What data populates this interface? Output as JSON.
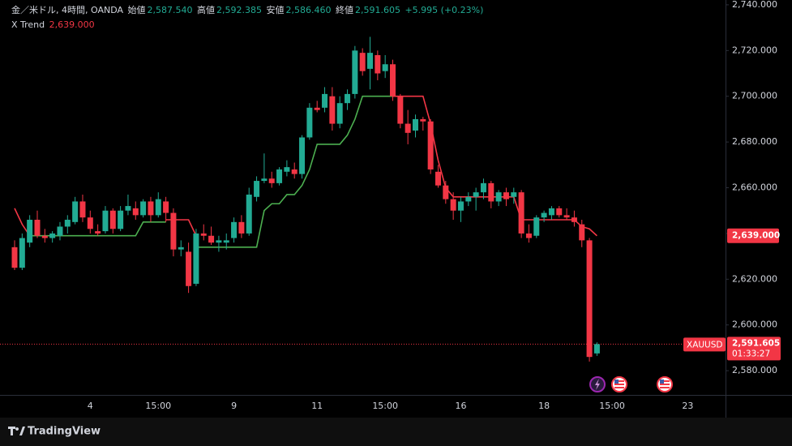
{
  "chart_data": {
    "type": "candlestick",
    "title": "金／米ドル, 4時間, OANDA",
    "header": {
      "open_label": "始値",
      "open": "2,587.540",
      "high_label": "高値",
      "high": "2,592.385",
      "low_label": "安値",
      "low": "2,586.460",
      "close_label": "終値",
      "close": "2,591.605",
      "change": "+5.995 (+0.23%)"
    },
    "indicator": {
      "name": "X Trend",
      "value": 2639,
      "value_label": "2,639.000"
    },
    "symbol": "XAUUSD",
    "last_price": 2591.605,
    "last_price_label": "2,591.605",
    "countdown": "01:33:27",
    "up_color": "#22ab94",
    "down_color": "#f23645",
    "open": [
      2634,
      2625,
      2636,
      2646,
      2639,
      2638,
      2639,
      2643,
      2645,
      2654,
      2647,
      2641,
      2641,
      2650,
      2642,
      2650,
      2651,
      2648,
      2654,
      2648,
      2654,
      2649,
      2633,
      2632,
      2618,
      2640,
      2639,
      2636,
      2636,
      2638,
      2645,
      2640,
      2656,
      2663,
      2664,
      2662,
      2667,
      2668,
      2666,
      2682,
      2695,
      2695,
      2700,
      2688,
      2697,
      2701,
      2719,
      2712,
      2718,
      2711,
      2714,
      2700,
      2688,
      2685,
      2690,
      2689,
      2667,
      2661,
      2655,
      2650,
      2654,
      2656,
      2658,
      2662,
      2654,
      2658,
      2656,
      2658,
      2640,
      2639,
      2647,
      2648,
      2651,
      2648,
      2647,
      2644,
      2637,
      2587.54
    ],
    "high": [
      2637,
      2640,
      2648,
      2650,
      2642,
      2641,
      2645,
      2648,
      2656,
      2657,
      2650,
      2644,
      2652,
      2651,
      2652,
      2657,
      2654,
      2655,
      2656,
      2658,
      2656,
      2651,
      2637,
      2636,
      2642,
      2644,
      2643,
      2639,
      2640,
      2647,
      2648,
      2660,
      2665,
      2675,
      2667,
      2669,
      2672,
      2671,
      2683,
      2697,
      2698,
      2704,
      2704,
      2700,
      2703,
      2722,
      2721,
      2726,
      2720,
      2718,
      2716,
      2701,
      2694,
      2692,
      2691,
      2690,
      2670,
      2663,
      2658,
      2656,
      2658,
      2660,
      2664,
      2663,
      2659,
      2660,
      2660,
      2659,
      2644,
      2648,
      2650,
      2652,
      2652,
      2651,
      2650,
      2646,
      2638,
      2592.385
    ],
    "low": [
      2624,
      2624,
      2634,
      2638,
      2636,
      2636,
      2637,
      2640,
      2644,
      2645,
      2640,
      2639,
      2640,
      2640,
      2641,
      2648,
      2646,
      2647,
      2645,
      2647,
      2645,
      2630,
      2630,
      2614,
      2617,
      2637,
      2635,
      2632,
      2633,
      2636,
      2638,
      2639,
      2654,
      2662,
      2660,
      2661,
      2665,
      2664,
      2664,
      2681,
      2693,
      2693,
      2685,
      2686,
      2694,
      2699,
      2709,
      2703,
      2707,
      2708,
      2698,
      2686,
      2679,
      2682,
      2685,
      2666,
      2660,
      2653,
      2646,
      2645,
      2652,
      2650,
      2655,
      2651,
      2652,
      2652,
      2653,
      2638,
      2636,
      2638,
      2645,
      2646,
      2647,
      2646,
      2643,
      2634,
      2584,
      2586.46
    ],
    "close": [
      2625,
      2638,
      2646,
      2639,
      2638,
      2640,
      2643,
      2646,
      2654,
      2647,
      2642,
      2640,
      2650,
      2642,
      2650,
      2652,
      2648,
      2654,
      2648,
      2655,
      2649,
      2633,
      2634,
      2617,
      2640,
      2639,
      2636,
      2637,
      2637,
      2645,
      2640,
      2657,
      2663,
      2664,
      2662,
      2668,
      2669,
      2666,
      2682,
      2695,
      2694,
      2701,
      2688,
      2697,
      2701,
      2720,
      2711,
      2719,
      2710,
      2714,
      2700,
      2688,
      2684,
      2690,
      2689,
      2668,
      2661,
      2655,
      2650,
      2654,
      2656,
      2658,
      2662,
      2654,
      2658,
      2655,
      2658,
      2640,
      2638,
      2647,
      2649,
      2651,
      2648,
      2647,
      2645,
      2637,
      2586,
      2591.605
    ],
    "series": [
      {
        "name": "X Trend down",
        "color": "#f23645",
        "values": [
          2651,
          2644,
          2639,
          null,
          null,
          null,
          null,
          null,
          null,
          null,
          null,
          null,
          null,
          null,
          null,
          null,
          null,
          null,
          null,
          null,
          2646,
          2646,
          2646,
          2646,
          2639,
          null,
          null,
          null,
          null,
          null,
          null,
          null,
          null,
          null,
          null,
          null,
          null,
          null,
          null,
          null,
          null,
          null,
          null,
          null,
          null,
          null,
          null,
          null,
          null,
          null,
          2700,
          2700,
          2700,
          2700,
          2700,
          2688,
          2672,
          2660,
          2656,
          2656,
          2656,
          2656,
          2656,
          2656,
          2656,
          2656,
          2656,
          2646,
          2646,
          2646,
          2646,
          2646,
          2646,
          2646,
          2646,
          2643,
          2642,
          2639
        ]
      },
      {
        "name": "X Trend up",
        "color": "#4caf50",
        "values": [
          null,
          null,
          2639,
          2639,
          2639,
          2639,
          2639,
          2639,
          2639,
          2639,
          2639,
          2639,
          2639,
          2639,
          2639,
          2639,
          2639,
          2645,
          2645,
          2645,
          2645,
          null,
          null,
          null,
          2634,
          2634,
          2634,
          2634,
          2634,
          2634,
          2634,
          2634,
          2634,
          2650,
          2653,
          2653,
          2657,
          2657,
          2661,
          2668,
          2679,
          2679,
          2679,
          2679,
          2683,
          2690,
          2700,
          2700,
          2700,
          2700,
          2700,
          null,
          null,
          null,
          null,
          null,
          null,
          null,
          null,
          null,
          null,
          null,
          null,
          null,
          null,
          null,
          null,
          null,
          null,
          null,
          null,
          null,
          null,
          null,
          null,
          null,
          null,
          null
        ]
      }
    ],
    "ylim": [
      2569.4,
      2742.1
    ],
    "yticks": [
      {
        "value": 2580,
        "label": "2,580.000"
      },
      {
        "value": 2600,
        "label": "2,600.000"
      },
      {
        "value": 2620,
        "label": "2,620.000"
      },
      {
        "value": 2640,
        "label": "2,640.000"
      },
      {
        "value": 2660,
        "label": "2,660.000"
      },
      {
        "value": 2680,
        "label": "2,680.000"
      },
      {
        "value": 2700,
        "label": "2,700.000"
      },
      {
        "value": 2720,
        "label": "2,720.000"
      },
      {
        "value": 2740,
        "label": "2,740.000"
      }
    ],
    "xticks": [
      {
        "value": 10,
        "label": "4"
      },
      {
        "value": 19,
        "label": "15:00"
      },
      {
        "value": 29,
        "label": "9"
      },
      {
        "value": 40,
        "label": "11"
      },
      {
        "value": 49,
        "label": "15:00"
      },
      {
        "value": 59,
        "label": "16"
      },
      {
        "value": 70,
        "label": "18"
      },
      {
        "value": 79,
        "label": "15:00"
      },
      {
        "value": 89,
        "label": "23"
      }
    ]
  },
  "footer": {
    "brand": "TradingView"
  }
}
